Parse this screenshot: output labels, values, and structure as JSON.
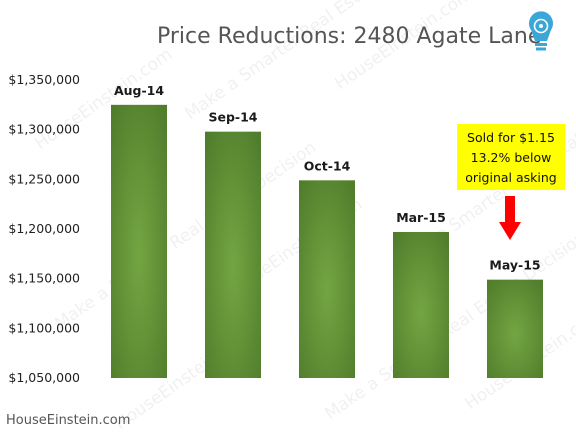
{
  "chart_data": {
    "type": "bar",
    "title": "Price Reductions: 2480 Agate Lane",
    "categories": [
      "Aug-14",
      "Sep-14",
      "Oct-14",
      "Mar-15",
      "May-15"
    ],
    "values": [
      1325000,
      1298000,
      1249000,
      1197000,
      1149000
    ],
    "ylim": [
      1050000,
      1350000
    ],
    "yticks": [
      {
        "value": 1050000,
        "label": "$1,050,000"
      },
      {
        "value": 1100000,
        "label": "$1,100,000"
      },
      {
        "value": 1150000,
        "label": "$1,150,000"
      },
      {
        "value": 1200000,
        "label": "$1,200,000"
      },
      {
        "value": 1250000,
        "label": "$1,250,000"
      },
      {
        "value": 1300000,
        "label": "$1,300,000"
      },
      {
        "value": 1350000,
        "label": "$1,350,000"
      }
    ],
    "grid": false,
    "legend": "none",
    "bar_colors": {
      "edge": "#4e7a2a",
      "center": "#74a542"
    },
    "annotation": {
      "lines": [
        "Sold for $1.15",
        "13.2% below",
        "original asking"
      ],
      "background": "#ffff00",
      "arrow_color": "#ff0000",
      "target_category": "May-15"
    }
  },
  "footer": {
    "source": "HouseEinstein.com"
  },
  "logo": {
    "icon": "lightbulb-icon",
    "color": "#3aa7d8"
  },
  "watermark": {
    "lines": [
      "HouseEinstein.com",
      "Make a Smarter Real Estate Decision"
    ]
  }
}
